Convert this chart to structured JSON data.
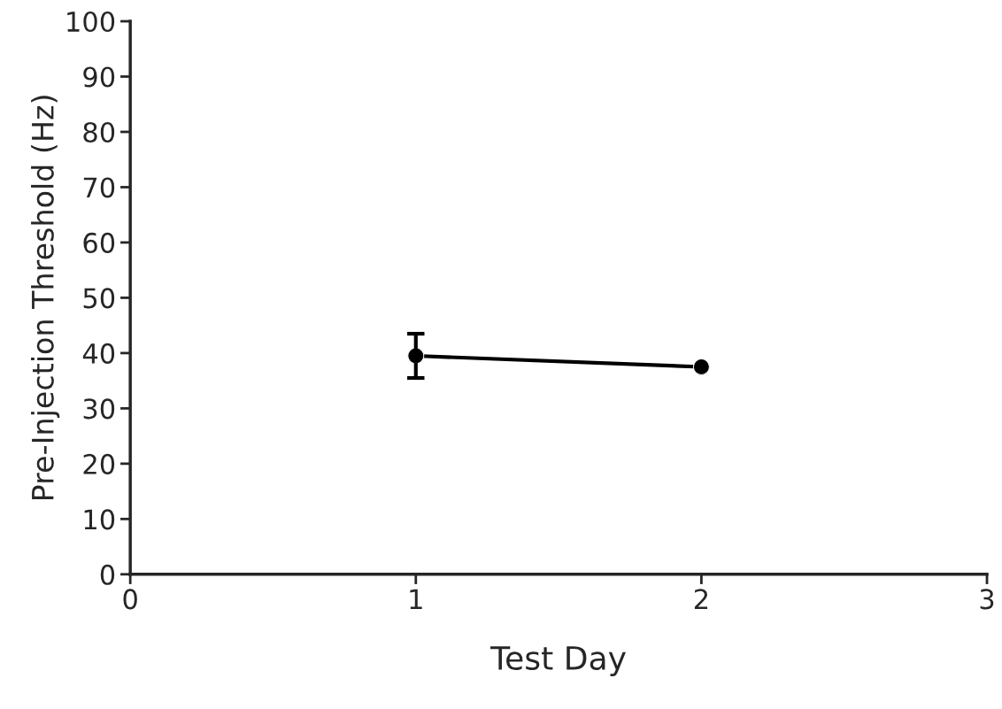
{
  "chart_data": {
    "type": "line",
    "xlabel": "Test Day",
    "ylabel": "Pre-Injection Threshold (Hz)",
    "x": [
      1,
      2
    ],
    "series": [
      {
        "color": "#000000",
        "values": [
          39.5,
          37.5
        ],
        "errors": [
          4,
          null
        ]
      }
    ],
    "xlim": [
      0,
      3
    ],
    "xticks": [
      0,
      1,
      2,
      3
    ],
    "ylim": [
      0,
      100
    ],
    "yticks": [
      0,
      10,
      20,
      30,
      40,
      50,
      60,
      70,
      80,
      90,
      100
    ],
    "marker": "circle",
    "line_style": "solid",
    "grid": false,
    "legend": false
  }
}
